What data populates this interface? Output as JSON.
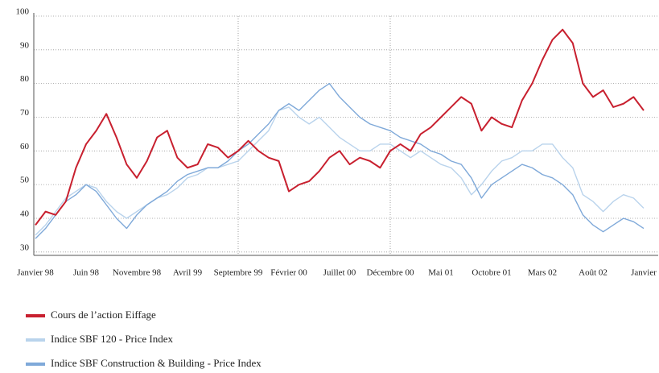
{
  "chart_data": {
    "type": "line",
    "categories": [
      "Janvier 98",
      null,
      null,
      null,
      null,
      "Juin 98",
      null,
      null,
      null,
      null,
      "Novembre 98",
      null,
      null,
      null,
      null,
      "Avril 99",
      null,
      null,
      null,
      null,
      "Septembre 99",
      null,
      null,
      null,
      null,
      "Février 00",
      null,
      null,
      null,
      null,
      "Juillet 00",
      null,
      null,
      null,
      null,
      "Décembre 00",
      null,
      null,
      null,
      null,
      "Mai 01",
      null,
      null,
      null,
      null,
      "Octobre 01",
      null,
      null,
      null,
      null,
      "Mars 02",
      null,
      null,
      null,
      null,
      "Août 02",
      null,
      null,
      null,
      null,
      "Janvier"
    ],
    "series": [
      {
        "name": "Cours de l’action Eiffage",
        "color": "#c8202f",
        "values": [
          38,
          42,
          41,
          45,
          55,
          62,
          66,
          71,
          64,
          56,
          52,
          57,
          64,
          66,
          58,
          55,
          56,
          62,
          61,
          58,
          60,
          63,
          60,
          58,
          57,
          48,
          50,
          51,
          54,
          58,
          60,
          56,
          58,
          57,
          55,
          60,
          62,
          60,
          65,
          67,
          70,
          73,
          76,
          74,
          66,
          70,
          68,
          67,
          75,
          80,
          87,
          93,
          96,
          92,
          80,
          76,
          78,
          73,
          74,
          76,
          72
        ]
      },
      {
        "name": "Indice SBF 120 - Price Index",
        "color": "#b9d3ec",
        "values": [
          35,
          38,
          42,
          46,
          48,
          50,
          49,
          45,
          42,
          40,
          42,
          44,
          46,
          47,
          49,
          52,
          53,
          55,
          55,
          56,
          57,
          60,
          63,
          66,
          72,
          73,
          70,
          68,
          70,
          67,
          64,
          62,
          60,
          60,
          62,
          62,
          60,
          58,
          60,
          58,
          56,
          55,
          52,
          47,
          50,
          54,
          57,
          58,
          60,
          60,
          62,
          62,
          58,
          55,
          47,
          45,
          42,
          45,
          47,
          46,
          43
        ]
      },
      {
        "name": "Indice SBF Construction & Building - Price Index",
        "color": "#7fa9d9",
        "values": [
          34,
          37,
          41,
          45,
          47,
          50,
          48,
          44,
          40,
          37,
          41,
          44,
          46,
          48,
          51,
          53,
          54,
          55,
          55,
          57,
          60,
          62,
          65,
          68,
          72,
          74,
          72,
          75,
          78,
          80,
          76,
          73,
          70,
          68,
          67,
          66,
          64,
          63,
          62,
          60,
          59,
          57,
          56,
          52,
          46,
          50,
          52,
          54,
          56,
          55,
          53,
          52,
          50,
          47,
          41,
          38,
          36,
          38,
          40,
          39,
          37
        ]
      }
    ],
    "ylim": [
      29,
      100
    ],
    "yticks": [
      30,
      40,
      50,
      60,
      70,
      80,
      90,
      100
    ],
    "grid": true
  }
}
